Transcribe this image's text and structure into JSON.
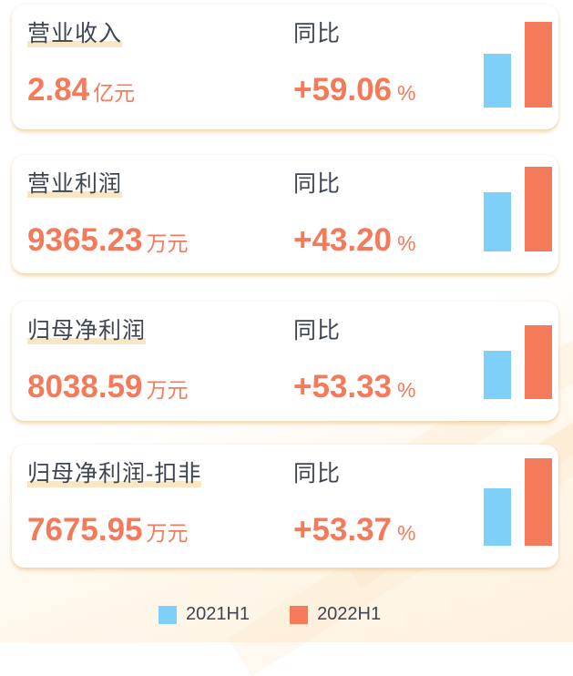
{
  "chart_data": {
    "type": "bar",
    "legend_position": "bottom",
    "yoy_label": "同比",
    "series": [
      {
        "name": "2021H1",
        "color": "#7fd0f8"
      },
      {
        "name": "2022H1",
        "color": "#f47a5a"
      }
    ],
    "cards": [
      {
        "title": "营业收入",
        "value": "2.84",
        "unit": "亿元",
        "yoy": "+59.06",
        "pct": "%",
        "bars": [
          1.785,
          2.84
        ]
      },
      {
        "title": "营业利润",
        "value": "9365.23",
        "unit": "万元",
        "yoy": "+43.20",
        "pct": "%",
        "bars": [
          6540.0,
          9365.23
        ]
      },
      {
        "title": "归母净利润",
        "value": "8038.59",
        "unit": "万元",
        "yoy": "+53.33",
        "pct": "%",
        "bars": [
          5242.7,
          8038.59
        ]
      },
      {
        "title": "归母净利润-扣非",
        "value": "7675.95",
        "unit": "万元",
        "yoy": "+53.37",
        "pct": "%",
        "bars": [
          5004.9,
          7675.95
        ]
      }
    ]
  }
}
